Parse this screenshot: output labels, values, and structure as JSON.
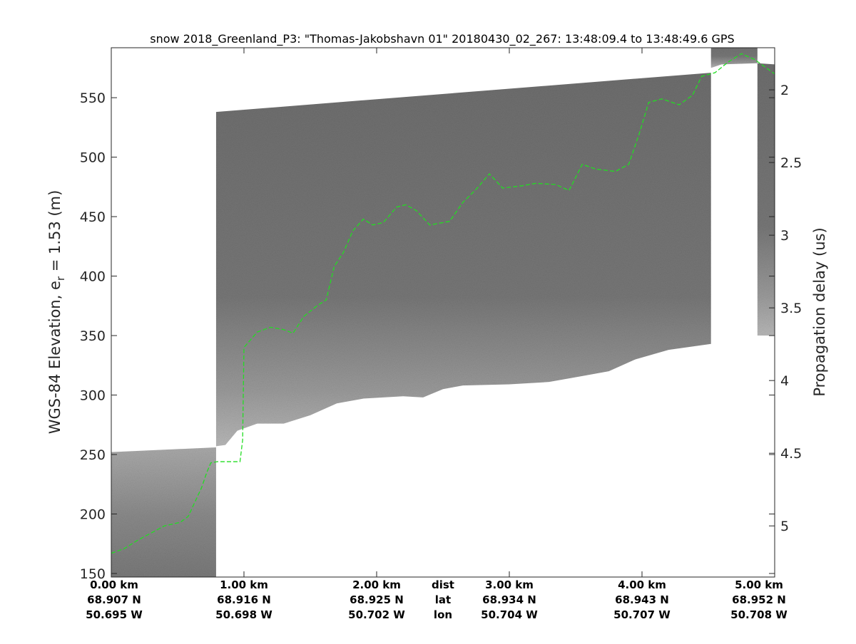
{
  "chart_data": {
    "type": "heatmap",
    "title": "snow 2018_Greenland_P3: \"Thomas-Jakobshavn 01\"  20180430_02_267: 13:48:09.4 to 13:48:49.6 GPS",
    "ylabel": "WGS-84 Elevation, e",
    "ylabel_sub": "r",
    "ylabel_suffix": " = 1.53 (m)",
    "y2label": "Propagation delay (us)",
    "xlim_km": [
      0,
      5
    ],
    "ylim": [
      147,
      592
    ],
    "y_ticks": [
      "150",
      "200",
      "250",
      "300",
      "350",
      "400",
      "450",
      "500",
      "550"
    ],
    "y_tick_values": [
      150,
      200,
      250,
      300,
      350,
      400,
      450,
      500,
      550
    ],
    "y2_ticks": [
      "2",
      "2.5",
      "3",
      "3.5",
      "4",
      "4.5",
      "5"
    ],
    "y2_tick_values": [
      2,
      2.5,
      3,
      3.5,
      4,
      4.5,
      5
    ],
    "y2_elev_at_2us": 556.6,
    "y2_elev_per_us": -122.2,
    "x_rows": {
      "dist": [
        "0.00 km",
        "1.00 km",
        "2.00 km",
        "3.00 km",
        "4.00 km",
        "5.00 km"
      ],
      "lat": [
        "68.907 N",
        "68.916 N",
        "68.925 N",
        "68.934 N",
        "68.943 N",
        "68.952 N"
      ],
      "lon": [
        "50.695 W",
        "50.698 W",
        "50.702 W",
        "50.704 W",
        "50.707 W",
        "50.708 W"
      ],
      "row_labels": [
        "dist",
        "lat",
        "lon"
      ],
      "km_values": [
        0,
        1,
        2,
        3,
        4,
        5
      ]
    },
    "echogram_blocks": [
      {
        "x": [
          0,
          0.79
        ],
        "top": [
          252,
          256
        ],
        "bottom": [
          [
            0,
            140
          ],
          [
            0.79,
            140
          ]
        ]
      },
      {
        "x": [
          0.79,
          4.52
        ],
        "top": [
          538,
          571
        ],
        "bottom": [
          [
            0.79,
            257
          ],
          [
            0.86,
            258
          ],
          [
            0.95,
            270
          ],
          [
            1.1,
            276
          ],
          [
            1.3,
            276
          ],
          [
            1.5,
            283
          ],
          [
            1.7,
            293
          ],
          [
            1.9,
            297
          ],
          [
            2.2,
            299
          ],
          [
            2.35,
            298
          ],
          [
            2.5,
            305
          ],
          [
            2.65,
            308
          ],
          [
            3.0,
            309
          ],
          [
            3.3,
            311
          ],
          [
            3.55,
            316
          ],
          [
            3.75,
            320
          ],
          [
            3.95,
            330
          ],
          [
            4.2,
            338
          ],
          [
            4.52,
            343
          ]
        ]
      },
      {
        "x": [
          4.52,
          4.87
        ],
        "top": [
          600,
          600
        ],
        "bottom": [
          [
            4.52,
            575
          ],
          [
            4.6,
            578
          ],
          [
            4.87,
            579
          ]
        ]
      },
      {
        "x": [
          4.87,
          5.0
        ],
        "top": [
          579,
          578
        ],
        "bottom": [
          [
            4.87,
            350
          ],
          [
            5.0,
            350
          ]
        ]
      }
    ],
    "series": [
      {
        "name": "surface",
        "color": "#22dd22",
        "points": [
          [
            0,
            167
          ],
          [
            0.1,
            171
          ],
          [
            0.2,
            178
          ],
          [
            0.3,
            184
          ],
          [
            0.4,
            190
          ],
          [
            0.52,
            193
          ],
          [
            0.58,
            198
          ],
          [
            0.63,
            210
          ],
          [
            0.68,
            222
          ],
          [
            0.72,
            235
          ],
          [
            0.75,
            243
          ],
          [
            0.8,
            244
          ],
          [
            0.97,
            244
          ],
          [
            0.99,
            262
          ],
          [
            1.0,
            340
          ],
          [
            1.1,
            353
          ],
          [
            1.2,
            357
          ],
          [
            1.3,
            355
          ],
          [
            1.37,
            352
          ],
          [
            1.45,
            366
          ],
          [
            1.55,
            375
          ],
          [
            1.62,
            380
          ],
          [
            1.68,
            408
          ],
          [
            1.75,
            420
          ],
          [
            1.82,
            438
          ],
          [
            1.9,
            448
          ],
          [
            1.97,
            443
          ],
          [
            2.05,
            445
          ],
          [
            2.15,
            458
          ],
          [
            2.22,
            460
          ],
          [
            2.3,
            455
          ],
          [
            2.4,
            443
          ],
          [
            2.55,
            446
          ],
          [
            2.65,
            462
          ],
          [
            2.75,
            473
          ],
          [
            2.85,
            486
          ],
          [
            2.95,
            474
          ],
          [
            3.1,
            476
          ],
          [
            3.2,
            478
          ],
          [
            3.35,
            477
          ],
          [
            3.45,
            472
          ],
          [
            3.55,
            494
          ],
          [
            3.65,
            490
          ],
          [
            3.8,
            488
          ],
          [
            3.9,
            494
          ],
          [
            3.98,
            520
          ],
          [
            4.05,
            546
          ],
          [
            4.15,
            549
          ],
          [
            4.28,
            544
          ],
          [
            4.38,
            552
          ],
          [
            4.45,
            568
          ],
          [
            4.55,
            571
          ],
          [
            4.65,
            580
          ],
          [
            4.75,
            587
          ],
          [
            4.85,
            582
          ],
          [
            4.9,
            578
          ],
          [
            5.0,
            570
          ]
        ]
      }
    ]
  }
}
